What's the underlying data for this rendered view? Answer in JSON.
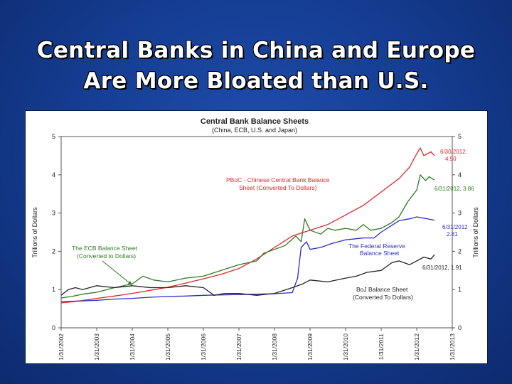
{
  "slide": {
    "title_line1": "Central Banks in China and Europe",
    "title_line2": "Are More Bloated than U.S."
  },
  "chart_data": {
    "type": "line",
    "title": "Central Bank Balance Sheets",
    "subtitle": "(China, ECB, U.S. and Japan)",
    "ylabel": "Trillions of Dollars",
    "ylabel_right": "Trillions of Dollars",
    "ylim": [
      0,
      5
    ],
    "yticks": [
      0,
      1,
      2,
      3,
      4,
      5
    ],
    "xlim": [
      2002,
      2013
    ],
    "xticks": [
      "1/31/2002",
      "1/31/2003",
      "1/31/2004",
      "1/31/2005",
      "1/31/2006",
      "1/31/2007",
      "1/31/2008",
      "1/31/2009",
      "1/31/2010",
      "1/31/2011",
      "1/31/2012",
      "1/31/2013"
    ],
    "colors": {
      "pboc": "#e3262b",
      "ecb": "#2e7a23",
      "fed": "#2b2ec4",
      "boj": "#222222"
    },
    "series": [
      {
        "key": "pboc",
        "points": [
          [
            2002,
            0.65
          ],
          [
            2002.5,
            0.7
          ],
          [
            2003,
            0.77
          ],
          [
            2003.5,
            0.83
          ],
          [
            2004,
            0.9
          ],
          [
            2004.5,
            0.98
          ],
          [
            2005,
            1.06
          ],
          [
            2005.5,
            1.17
          ],
          [
            2006,
            1.28
          ],
          [
            2006.5,
            1.4
          ],
          [
            2007,
            1.55
          ],
          [
            2007.5,
            1.8
          ],
          [
            2008,
            2.1
          ],
          [
            2008.5,
            2.4
          ],
          [
            2009,
            2.55
          ],
          [
            2009.5,
            2.7
          ],
          [
            2010,
            2.95
          ],
          [
            2010.5,
            3.2
          ],
          [
            2011,
            3.55
          ],
          [
            2011.5,
            3.9
          ],
          [
            2011.8,
            4.2
          ],
          [
            2012,
            4.55
          ],
          [
            2012.1,
            4.7
          ],
          [
            2012.2,
            4.5
          ],
          [
            2012.4,
            4.6
          ],
          [
            2012.5,
            4.5
          ]
        ]
      },
      {
        "key": "ecb",
        "points": [
          [
            2002,
            0.78
          ],
          [
            2002.3,
            0.82
          ],
          [
            2002.6,
            0.88
          ],
          [
            2003,
            0.93
          ],
          [
            2003.5,
            1.05
          ],
          [
            2004,
            1.15
          ],
          [
            2004.3,
            1.35
          ],
          [
            2004.6,
            1.25
          ],
          [
            2005,
            1.2
          ],
          [
            2005.5,
            1.3
          ],
          [
            2006,
            1.35
          ],
          [
            2006.5,
            1.5
          ],
          [
            2007,
            1.65
          ],
          [
            2007.5,
            1.75
          ],
          [
            2007.7,
            1.95
          ],
          [
            2008,
            2.05
          ],
          [
            2008.3,
            2.15
          ],
          [
            2008.6,
            2.4
          ],
          [
            2008.75,
            2.25
          ],
          [
            2008.85,
            2.85
          ],
          [
            2009,
            2.55
          ],
          [
            2009.3,
            2.45
          ],
          [
            2009.5,
            2.6
          ],
          [
            2009.7,
            2.55
          ],
          [
            2010,
            2.6
          ],
          [
            2010.3,
            2.55
          ],
          [
            2010.5,
            2.7
          ],
          [
            2010.7,
            2.55
          ],
          [
            2011,
            2.6
          ],
          [
            2011.3,
            2.75
          ],
          [
            2011.5,
            2.9
          ],
          [
            2011.75,
            3.3
          ],
          [
            2012,
            3.6
          ],
          [
            2012.1,
            4.0
          ],
          [
            2012.25,
            3.85
          ],
          [
            2012.35,
            3.95
          ],
          [
            2012.5,
            3.86
          ]
        ]
      },
      {
        "key": "fed",
        "points": [
          [
            2002,
            0.68
          ],
          [
            2002.5,
            0.7
          ],
          [
            2003,
            0.72
          ],
          [
            2003.5,
            0.75
          ],
          [
            2004,
            0.77
          ],
          [
            2004.5,
            0.8
          ],
          [
            2005,
            0.82
          ],
          [
            2005.5,
            0.83
          ],
          [
            2006,
            0.85
          ],
          [
            2006.5,
            0.86
          ],
          [
            2007,
            0.87
          ],
          [
            2007.5,
            0.88
          ],
          [
            2008,
            0.89
          ],
          [
            2008.5,
            0.92
          ],
          [
            2008.65,
            1.3
          ],
          [
            2008.75,
            2.1
          ],
          [
            2008.9,
            2.25
          ],
          [
            2009,
            2.05
          ],
          [
            2009.3,
            2.1
          ],
          [
            2009.6,
            2.2
          ],
          [
            2010,
            2.3
          ],
          [
            2010.5,
            2.35
          ],
          [
            2010.8,
            2.35
          ],
          [
            2011,
            2.5
          ],
          [
            2011.5,
            2.8
          ],
          [
            2011.8,
            2.85
          ],
          [
            2012,
            2.9
          ],
          [
            2012.3,
            2.85
          ],
          [
            2012.5,
            2.81
          ]
        ]
      },
      {
        "key": "boj",
        "points": [
          [
            2002,
            0.85
          ],
          [
            2002.2,
            1.0
          ],
          [
            2002.4,
            1.05
          ],
          [
            2002.6,
            1.0
          ],
          [
            2003,
            1.1
          ],
          [
            2003.5,
            1.05
          ],
          [
            2004,
            1.1
          ],
          [
            2004.5,
            1.05
          ],
          [
            2005,
            1.05
          ],
          [
            2005.5,
            1.1
          ],
          [
            2006,
            1.05
          ],
          [
            2006.3,
            0.85
          ],
          [
            2006.6,
            0.9
          ],
          [
            2007,
            0.9
          ],
          [
            2007.5,
            0.85
          ],
          [
            2008,
            0.9
          ],
          [
            2008.5,
            1.05
          ],
          [
            2008.8,
            1.15
          ],
          [
            2009,
            1.25
          ],
          [
            2009.5,
            1.2
          ],
          [
            2010,
            1.3
          ],
          [
            2010.3,
            1.35
          ],
          [
            2010.6,
            1.45
          ],
          [
            2011,
            1.5
          ],
          [
            2011.3,
            1.7
          ],
          [
            2011.5,
            1.75
          ],
          [
            2011.8,
            1.65
          ],
          [
            2012,
            1.75
          ],
          [
            2012.2,
            1.85
          ],
          [
            2012.4,
            1.8
          ],
          [
            2012.5,
            1.91
          ]
        ]
      }
    ],
    "annotations": {
      "pboc_label_1": "PBoC - Chinese Central Bank Balance",
      "pboc_label_2": "Sheet (Converted To Dollars)",
      "pboc_end_1": "6/30/2012:",
      "pboc_end_2": "4.50",
      "ecb_label_1": "The ECB Balance Sheet",
      "ecb_label_2": "(Converted to Dollars)",
      "ecb_end": "6/31/2012, 3.86",
      "fed_label_1": "The Federal Reserve",
      "fed_label_2": "Balance Sheet",
      "fed_end_1": "6/31/2012",
      "fed_end_2": "2.81",
      "boj_label_1": "BoJ Balance Sheet",
      "boj_label_2": "(Converted To Dollars)",
      "boj_end": "6/31/2012, 1.91"
    }
  }
}
